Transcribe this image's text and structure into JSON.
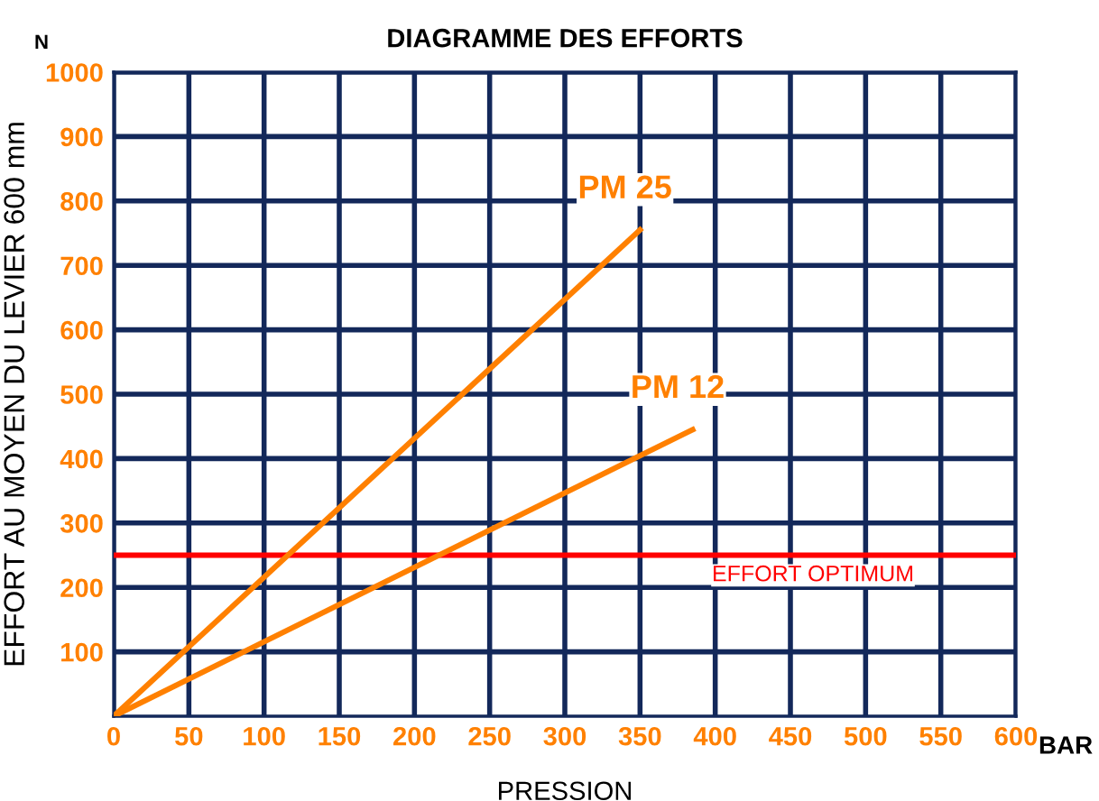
{
  "chart_data": {
    "type": "line",
    "title": "DIAGRAMME DES EFFORTS",
    "xlabel": "PRESSION",
    "ylabel": "EFFORT AU MOYEN DU LEVIER 600 mm",
    "annotations": [
      "N",
      "BAR"
    ],
    "series": [
      {
        "name": "PM 25",
        "color": "#ff8000",
        "x": [
          0,
          350
        ],
        "values": [
          0,
          755
        ]
      },
      {
        "name": "PM 12",
        "color": "#ff8000",
        "x": [
          0,
          385
        ],
        "values": [
          0,
          445
        ]
      }
    ],
    "xlim": [
      0,
      600
    ],
    "xticks": [
      0,
      50,
      100,
      150,
      200,
      250,
      300,
      350,
      400,
      450,
      500,
      550,
      600
    ],
    "ylim": [
      0,
      1000
    ],
    "yticks": [
      100,
      200,
      300,
      400,
      500,
      600,
      700,
      800,
      900,
      1000
    ],
    "ref_lines": [
      {
        "axis": "y",
        "value": 250,
        "label": "EFFORT OPTIMUM",
        "color": "#ff0000"
      }
    ],
    "grid": true,
    "legend": false,
    "marker": "none",
    "line_style": "solid"
  }
}
